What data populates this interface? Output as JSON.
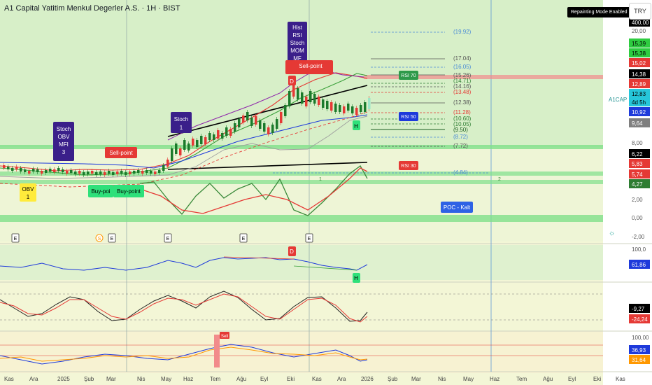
{
  "header": {
    "title": "A1 Capital Yatitim Menkul Degerler A.S. · 1H · BIST",
    "repaint_badge": "Repainting Mode Enabled",
    "currency": "TRY"
  },
  "price_axis": {
    "ticks": [
      "20,00",
      "8,00",
      "2,00",
      "0,00",
      "-2,00"
    ],
    "tags": [
      {
        "text": "400,00",
        "bg": "#000000",
        "fg": "#ffffff"
      },
      {
        "text": "15,39",
        "bg": "#2ecc40",
        "fg": "#000000"
      },
      {
        "text": "15,38",
        "bg": "#2ecc40",
        "fg": "#000000"
      },
      {
        "text": "15,02",
        "bg": "#e53935",
        "fg": "#ffffff"
      },
      {
        "text": "14,38",
        "bg": "#000000",
        "fg": "#ffffff"
      },
      {
        "text": "12,89",
        "bg": "#e53935",
        "fg": "#ffffff"
      },
      {
        "text": "12,83",
        "bg": "#26c6da",
        "fg": "#000000"
      },
      {
        "text": "4d 5h",
        "bg": "#26c6da",
        "fg": "#000000"
      },
      {
        "text": "10,92",
        "bg": "#1e3adb",
        "fg": "#ffffff"
      },
      {
        "text": "9,64",
        "bg": "#7f7f7f",
        "fg": "#ffffff"
      },
      {
        "text": "6,22",
        "bg": "#000000",
        "fg": "#ffffff"
      },
      {
        "text": "5,83",
        "bg": "#e53935",
        "fg": "#ffffff"
      },
      {
        "text": "5,74",
        "bg": "#e53935",
        "fg": "#ffffff"
      },
      {
        "text": "4,27",
        "bg": "#2e7d32",
        "fg": "#ffffff"
      }
    ],
    "symbol_tag": "A1CAP"
  },
  "fib_levels": [
    "(19.92)",
    "(17.04)",
    "(16.05)",
    "(15.26)",
    "(14.71)",
    "(14.16)",
    "(13.48)",
    "(12.38)",
    "(11.28)",
    "(10.60)",
    "(10.05)",
    "(9.50)",
    "(8.72)",
    "(7.72)",
    "(4.84)"
  ],
  "rsi_labels": [
    "RSI 70",
    "RSI 50",
    "RSI 30"
  ],
  "signals": {
    "hist_box": [
      "Hist",
      "RSI",
      "Stoch",
      "MOM",
      "MF"
    ],
    "stoch_obv_box": [
      "Stoch",
      "OBV",
      "MFI",
      "3"
    ],
    "stoch1_box": [
      "Stoch",
      "1"
    ],
    "obv1_box": [
      "OBV",
      "1"
    ],
    "sell1": "Sell-point",
    "sell2": "Sell-point",
    "buy1": "Buy-poi",
    "buy2": "Buy-point",
    "poc": "POC - Kalt",
    "d_letter": "D",
    "h_letter": "H",
    "count1": "1",
    "count2": "2",
    "e_marker": "E",
    "s_marker": "S"
  },
  "rsi_pane": {
    "axis": [
      "100,0"
    ],
    "tag": {
      "text": "61,86",
      "bg": "#1e3adb"
    }
  },
  "stoch_pane": {
    "tags": [
      {
        "text": "-9,27",
        "bg": "#000000"
      },
      {
        "text": "-24,24",
        "bg": "#e53935"
      }
    ]
  },
  "mfi_pane": {
    "axis": [
      "100,00"
    ],
    "tags": [
      {
        "text": "36,93",
        "bg": "#1e3adb"
      },
      {
        "text": "31,64",
        "bg": "#ff9800"
      }
    ],
    "sell": "Sell"
  },
  "time_axis": [
    "Kas",
    "Ara",
    "2025",
    "Şub",
    "Mar",
    "Nis",
    "May",
    "Haz",
    "Tem",
    "Ağu",
    "Eyl",
    "Eki",
    "Kas",
    "Ara",
    "2026",
    "Şub",
    "Mar",
    "Nis",
    "May",
    "Haz",
    "Tem",
    "Ağu",
    "Eyl",
    "Eki",
    "Kas"
  ]
}
